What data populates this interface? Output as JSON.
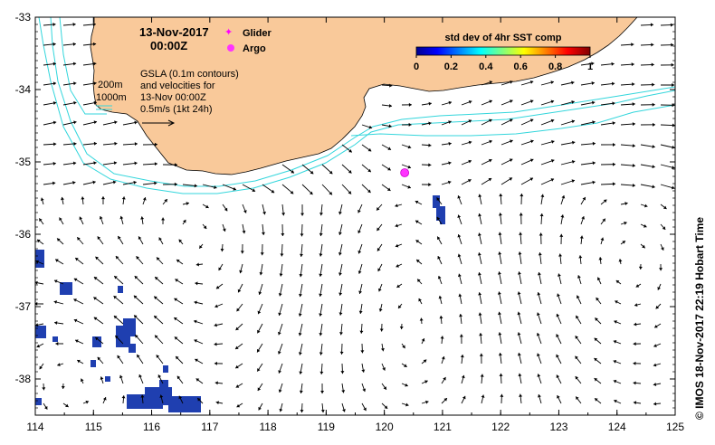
{
  "map": {
    "date_line1": "13-Nov-2017",
    "date_line2": "00:00Z",
    "legend_glider": "Glider",
    "legend_argo": "Argo",
    "depth_200": "200m",
    "depth_1000": "1000m",
    "gsla_line1": "GSLA (0.1m contours)",
    "gsla_line2": "and velocities for",
    "gsla_line3": "13-Nov 00:00Z",
    "scale_label": "0.5m/s (1kt 24h)",
    "colorbar_title": "std dev of 4hr SST comp",
    "colorbar_ticks": [
      "0",
      "0.2",
      "0.4",
      "0.6",
      "0.8",
      "1"
    ],
    "credit": "©  IMOS 18-Nov-2017 22:19 Hobart Time",
    "x_ticks": [
      "114",
      "115",
      "116",
      "117",
      "118",
      "119",
      "120",
      "121",
      "122",
      "123",
      "124",
      "125"
    ],
    "y_ticks": [
      "-33",
      "-34",
      "-35",
      "-36",
      "-37",
      "-38"
    ],
    "argo_float": {
      "lon": 120.35,
      "lat": -35.15
    },
    "lon_range": [
      114,
      125
    ],
    "lat_range": [
      -38.5,
      -33
    ],
    "colors": {
      "land": "#f9c99a",
      "isobath": "#33d6dc",
      "glider": "#ff00ff",
      "argo": "#ff33ff",
      "sst_patch": "#1f3fb0"
    }
  }
}
